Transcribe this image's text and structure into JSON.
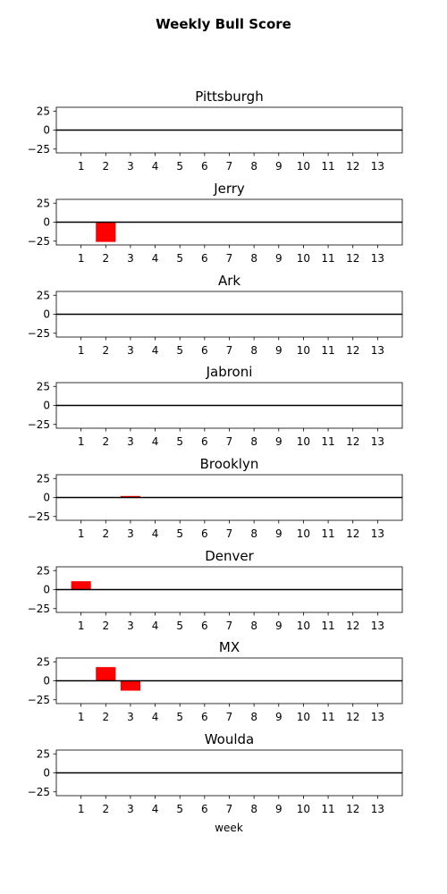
{
  "chart_data": {
    "type": "bar",
    "title": "Weekly Bull Score",
    "xlabel": "week",
    "ylabel": "",
    "categories": [
      1,
      2,
      3,
      4,
      5,
      6,
      7,
      8,
      9,
      10,
      11,
      12,
      13
    ],
    "x_tick_labels": [
      "1",
      "2",
      "3",
      "4",
      "5",
      "6",
      "7",
      "8",
      "9",
      "10",
      "11",
      "12",
      "13"
    ],
    "ylim": [
      -30,
      30
    ],
    "y_ticks": [
      25,
      0,
      -25
    ],
    "y_tick_labels": [
      "25",
      "0",
      "−25"
    ],
    "bar_color": "#ff0000",
    "zero_line_color": "#000000",
    "grid": false,
    "panels": [
      {
        "name": "Pittsburgh",
        "values": [
          0,
          0,
          0,
          0,
          0,
          0,
          0,
          0,
          0,
          0,
          0,
          0,
          0
        ]
      },
      {
        "name": "Jerry",
        "values": [
          0,
          -26,
          0,
          0,
          0,
          0,
          0,
          0,
          0,
          0,
          0,
          0,
          0
        ]
      },
      {
        "name": "Ark",
        "values": [
          0,
          0,
          0,
          0,
          0,
          0,
          0,
          0,
          0,
          0,
          0,
          0,
          0
        ]
      },
      {
        "name": "Jabroni",
        "values": [
          0,
          0,
          0,
          0,
          0,
          0,
          0,
          0,
          0,
          0,
          0,
          0,
          0
        ]
      },
      {
        "name": "Brooklyn",
        "values": [
          0,
          0,
          2,
          0,
          0,
          0,
          0,
          0,
          0,
          0,
          0,
          0,
          0
        ]
      },
      {
        "name": "Denver",
        "values": [
          11,
          0,
          0,
          0,
          0,
          0,
          0,
          0,
          0,
          0,
          0,
          0,
          0
        ]
      },
      {
        "name": "MX",
        "values": [
          0,
          18,
          -13,
          0,
          0,
          0,
          0,
          0,
          0,
          0,
          0,
          0,
          0
        ]
      },
      {
        "name": "Woulda",
        "values": [
          0,
          0,
          0,
          0,
          0,
          0,
          0,
          0,
          0,
          0,
          0,
          0,
          0
        ]
      }
    ]
  }
}
